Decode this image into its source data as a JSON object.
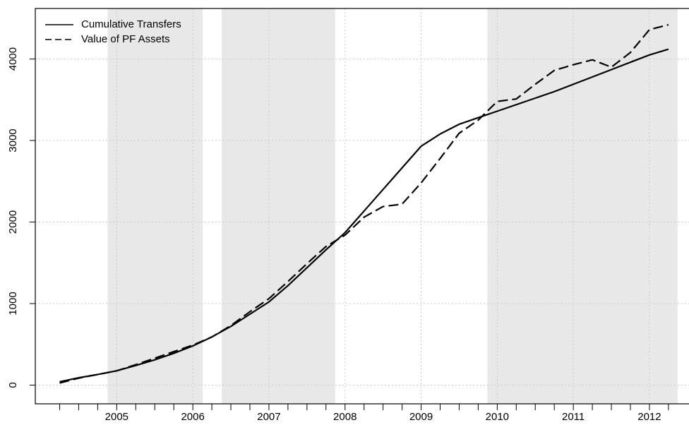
{
  "chart_data": {
    "type": "line",
    "x": [
      2004.25,
      2004.5,
      2004.75,
      2005,
      2005.25,
      2005.5,
      2005.75,
      2006,
      2006.25,
      2006.5,
      2006.75,
      2007,
      2007.25,
      2007.5,
      2007.75,
      2008,
      2008.25,
      2008.5,
      2008.75,
      2009,
      2009.25,
      2009.5,
      2009.75,
      2010,
      2010.25,
      2010.5,
      2010.75,
      2011,
      2011.25,
      2011.5,
      2011.75,
      2012,
      2012.25
    ],
    "series": [
      {
        "name": "Cumulative Transfers",
        "color": "#000000",
        "linestyle": "solid",
        "values": [
          40,
          90,
          130,
          175,
          240,
          310,
          390,
          480,
          590,
          720,
          870,
          1020,
          1220,
          1440,
          1660,
          1870,
          2135,
          2400,
          2665,
          2930,
          3080,
          3200,
          3280,
          3360,
          3440,
          3520,
          3600,
          3690,
          3780,
          3870,
          3960,
          4050,
          4120
        ]
      },
      {
        "name": "Value of PF Assets",
        "color": "#000000",
        "linestyle": "dashed",
        "values": [
          25,
          85,
          130,
          175,
          250,
          330,
          410,
          490,
          590,
          730,
          900,
          1060,
          1270,
          1490,
          1700,
          1840,
          2060,
          2190,
          2220,
          2480,
          2780,
          3090,
          3250,
          3480,
          3510,
          3690,
          3860,
          3930,
          3990,
          3900,
          4080,
          4360,
          4420
        ]
      }
    ],
    "shaded_regions": [
      [
        2004.88,
        2006.13
      ],
      [
        2006.38,
        2007.87
      ],
      [
        2009.87,
        2012.37
      ]
    ],
    "shade_color": "#e8e8e8",
    "xlim": [
      2003.93,
      2012.52
    ],
    "xticks": [
      2005,
      2006,
      2007,
      2008,
      2009,
      2010,
      2011,
      2012
    ],
    "x_minor_ticks": [
      2004.25,
      2004.5,
      2004.75,
      2005.25,
      2005.5,
      2005.75,
      2006.25,
      2006.5,
      2006.75,
      2007.25,
      2007.5,
      2007.75,
      2008.25,
      2008.5,
      2008.75,
      2009.25,
      2009.5,
      2009.75,
      2010.25,
      2010.5,
      2010.75,
      2011.25,
      2011.5,
      2011.75,
      2012.25
    ],
    "ylim": [
      -230,
      4620
    ],
    "yticks": [
      0,
      1000,
      2000,
      3000,
      4000
    ],
    "grid": true,
    "legend": "top-left"
  }
}
